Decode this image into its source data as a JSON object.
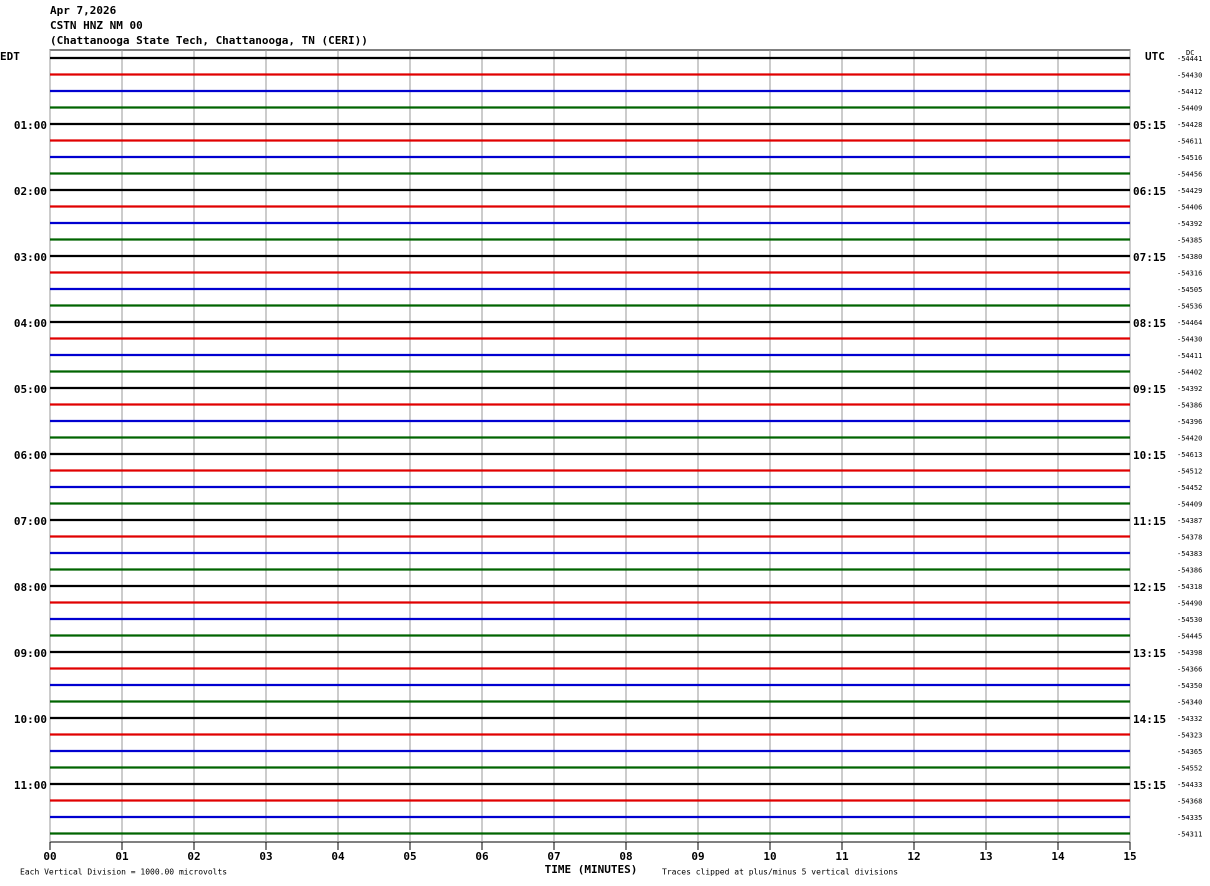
{
  "header": {
    "date": "Apr 7,2026",
    "station": "CSTN HNZ NM 00",
    "location": "(Chattanooga State Tech, Chattanooga, TN (CERI))"
  },
  "chart_data": {
    "type": "helicorder",
    "left_timezone": "EDT",
    "right_timezone": "UTC",
    "dc_label": "DC",
    "xlabel": "TIME (MINUTES)",
    "xlim": [
      0,
      15
    ],
    "xticks": [
      {
        "value": 0,
        "label": "00"
      },
      {
        "value": 1,
        "label": "01"
      },
      {
        "value": 2,
        "label": "02"
      },
      {
        "value": 3,
        "label": "03"
      },
      {
        "value": 4,
        "label": "04"
      },
      {
        "value": 5,
        "label": "05"
      },
      {
        "value": 6,
        "label": "06"
      },
      {
        "value": 7,
        "label": "07"
      },
      {
        "value": 8,
        "label": "08"
      },
      {
        "value": 9,
        "label": "09"
      },
      {
        "value": 10,
        "label": "10"
      },
      {
        "value": 11,
        "label": "11"
      },
      {
        "value": 12,
        "label": "12"
      },
      {
        "value": 13,
        "label": "13"
      },
      {
        "value": 14,
        "label": "14"
      },
      {
        "value": 15,
        "label": "15"
      }
    ],
    "grid": true,
    "hour_labels": [
      {
        "edt": "01:00",
        "utc": "05:15"
      },
      {
        "edt": "02:00",
        "utc": "06:15"
      },
      {
        "edt": "03:00",
        "utc": "07:15"
      },
      {
        "edt": "04:00",
        "utc": "08:15"
      },
      {
        "edt": "05:00",
        "utc": "09:15"
      },
      {
        "edt": "06:00",
        "utc": "10:15"
      },
      {
        "edt": "07:00",
        "utc": "11:15"
      },
      {
        "edt": "08:00",
        "utc": "12:15"
      },
      {
        "edt": "09:00",
        "utc": "13:15"
      },
      {
        "edt": "10:00",
        "utc": "14:15"
      },
      {
        "edt": "11:00",
        "utc": "15:15"
      }
    ],
    "traces": [
      {
        "dc": -54441,
        "color": "#000000"
      },
      {
        "dc": -54430,
        "color": "#e00000"
      },
      {
        "dc": -54412,
        "color": "#0000d0"
      },
      {
        "dc": -54409,
        "color": "#006400"
      },
      {
        "dc": -54428,
        "color": "#000000"
      },
      {
        "dc": -54611,
        "color": "#e00000"
      },
      {
        "dc": -54516,
        "color": "#0000d0"
      },
      {
        "dc": -54456,
        "color": "#006400"
      },
      {
        "dc": -54429,
        "color": "#000000"
      },
      {
        "dc": -54406,
        "color": "#e00000"
      },
      {
        "dc": -54392,
        "color": "#0000d0"
      },
      {
        "dc": -54385,
        "color": "#006400"
      },
      {
        "dc": -54380,
        "color": "#000000"
      },
      {
        "dc": -54316,
        "color": "#e00000"
      },
      {
        "dc": -54505,
        "color": "#0000d0"
      },
      {
        "dc": -54536,
        "color": "#006400"
      },
      {
        "dc": -54464,
        "color": "#000000"
      },
      {
        "dc": -54430,
        "color": "#e00000"
      },
      {
        "dc": -54411,
        "color": "#0000d0"
      },
      {
        "dc": -54402,
        "color": "#006400"
      },
      {
        "dc": -54392,
        "color": "#000000"
      },
      {
        "dc": -54386,
        "color": "#e00000"
      },
      {
        "dc": -54396,
        "color": "#0000d0"
      },
      {
        "dc": -54420,
        "color": "#006400"
      },
      {
        "dc": -54613,
        "color": "#000000"
      },
      {
        "dc": -54512,
        "color": "#e00000"
      },
      {
        "dc": -54452,
        "color": "#0000d0"
      },
      {
        "dc": -54409,
        "color": "#006400"
      },
      {
        "dc": -54387,
        "color": "#000000"
      },
      {
        "dc": -54378,
        "color": "#e00000"
      },
      {
        "dc": -54383,
        "color": "#0000d0"
      },
      {
        "dc": -54386,
        "color": "#006400"
      },
      {
        "dc": -54318,
        "color": "#000000"
      },
      {
        "dc": -54490,
        "color": "#e00000"
      },
      {
        "dc": -54530,
        "color": "#0000d0"
      },
      {
        "dc": -54445,
        "color": "#006400"
      },
      {
        "dc": -54398,
        "color": "#000000"
      },
      {
        "dc": -54366,
        "color": "#e00000"
      },
      {
        "dc": -54350,
        "color": "#0000d0"
      },
      {
        "dc": -54340,
        "color": "#006400"
      },
      {
        "dc": -54332,
        "color": "#000000"
      },
      {
        "dc": -54323,
        "color": "#e00000"
      },
      {
        "dc": -54365,
        "color": "#0000d0"
      },
      {
        "dc": -54552,
        "color": "#006400"
      },
      {
        "dc": -54433,
        "color": "#000000"
      },
      {
        "dc": -54368,
        "color": "#e00000"
      },
      {
        "dc": -54335,
        "color": "#0000d0"
      },
      {
        "dc": -54311,
        "color": "#006400"
      }
    ],
    "scale_note": "Each Vertical Division = 1000.00 microvolts",
    "clip_note": "Traces clipped at plus/minus 5 vertical divisions"
  }
}
